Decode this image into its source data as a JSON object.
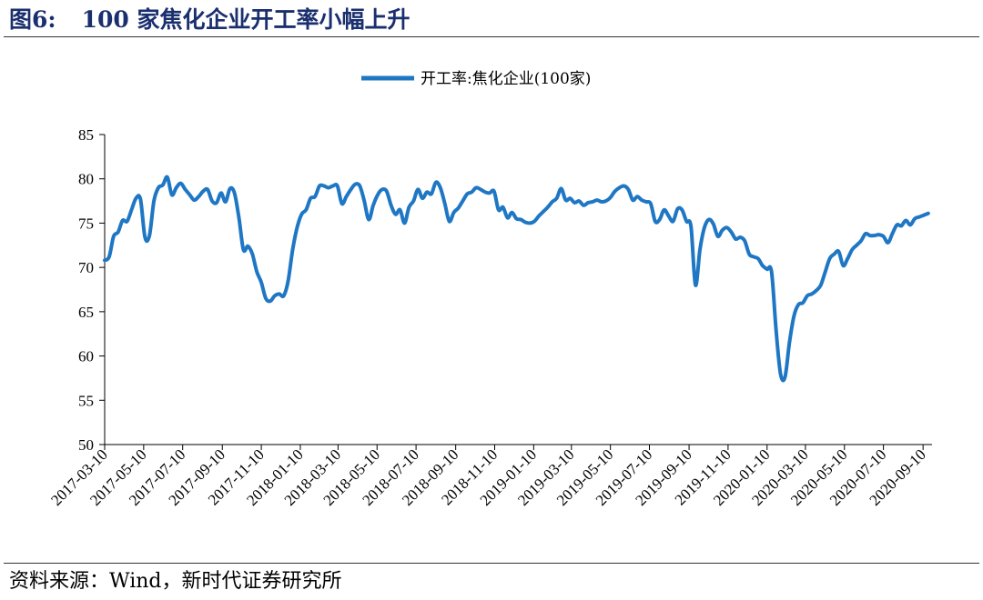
{
  "figure": {
    "number": "图6:",
    "title": "100 家焦化企业开工率小幅上升",
    "source": "资料来源：Wind，新时代证券研究所"
  },
  "chart_data": {
    "type": "line",
    "title": "",
    "xlabel": "",
    "ylabel": "",
    "ylim": [
      50,
      85
    ],
    "yticks": [
      85,
      80,
      75,
      70,
      65,
      60,
      55,
      50
    ],
    "xticks": [
      "2017-03-10",
      "2017-05-10",
      "2017-07-10",
      "2017-09-10",
      "2017-11-10",
      "2018-01-10",
      "2018-03-10",
      "2018-05-10",
      "2018-07-10",
      "2018-09-10",
      "2018-11-10",
      "2019-01-10",
      "2019-03-10",
      "2019-05-10",
      "2019-07-10",
      "2019-09-10",
      "2019-11-10",
      "2020-01-10",
      "2020-03-10",
      "2020-05-10",
      "2020-07-10",
      "2020-09-10"
    ],
    "legend": {
      "position": "top-center"
    },
    "grid": false,
    "color": "#1f77c4",
    "series": [
      {
        "name": "开工率:焦化企业(100家)",
        "points": [
          [
            "2017-03-10",
            70.8
          ],
          [
            "2017-03-17",
            71.2
          ],
          [
            "2017-03-24",
            73.5
          ],
          [
            "2017-03-31",
            74.0
          ],
          [
            "2017-04-07",
            75.3
          ],
          [
            "2017-04-14",
            75.2
          ],
          [
            "2017-04-21",
            76.5
          ],
          [
            "2017-04-28",
            77.8
          ],
          [
            "2017-05-05",
            77.7
          ],
          [
            "2017-05-12",
            73.4
          ],
          [
            "2017-05-19",
            73.6
          ],
          [
            "2017-05-26",
            77.5
          ],
          [
            "2017-06-02",
            79.0
          ],
          [
            "2017-06-09",
            79.3
          ],
          [
            "2017-06-16",
            80.2
          ],
          [
            "2017-06-23",
            78.2
          ],
          [
            "2017-06-30",
            79.0
          ],
          [
            "2017-07-07",
            79.5
          ],
          [
            "2017-07-14",
            78.8
          ],
          [
            "2017-07-21",
            78.2
          ],
          [
            "2017-07-28",
            77.6
          ],
          [
            "2017-08-04",
            78.0
          ],
          [
            "2017-08-11",
            78.6
          ],
          [
            "2017-08-18",
            78.8
          ],
          [
            "2017-08-25",
            77.5
          ],
          [
            "2017-09-01",
            77.3
          ],
          [
            "2017-09-08",
            78.4
          ],
          [
            "2017-09-15",
            77.4
          ],
          [
            "2017-09-22",
            78.9
          ],
          [
            "2017-09-29",
            78.4
          ],
          [
            "2017-10-06",
            75.6
          ],
          [
            "2017-10-13",
            72.0
          ],
          [
            "2017-10-20",
            72.4
          ],
          [
            "2017-10-27",
            71.5
          ],
          [
            "2017-11-03",
            69.5
          ],
          [
            "2017-11-10",
            68.3
          ],
          [
            "2017-11-17",
            66.5
          ],
          [
            "2017-11-24",
            66.2
          ],
          [
            "2017-12-01",
            66.8
          ],
          [
            "2017-12-08",
            67.0
          ],
          [
            "2017-12-15",
            66.8
          ],
          [
            "2017-12-22",
            68.5
          ],
          [
            "2017-12-29",
            72.0
          ],
          [
            "2018-01-05",
            74.5
          ],
          [
            "2018-01-12",
            76.0
          ],
          [
            "2018-01-19",
            76.5
          ],
          [
            "2018-01-26",
            77.8
          ],
          [
            "2018-02-02",
            78.0
          ],
          [
            "2018-02-09",
            79.2
          ],
          [
            "2018-02-16",
            79.2
          ],
          [
            "2018-02-23",
            79.0
          ],
          [
            "2018-03-02",
            79.2
          ],
          [
            "2018-03-09",
            79.2
          ],
          [
            "2018-03-16",
            77.2
          ],
          [
            "2018-03-23",
            78.0
          ],
          [
            "2018-03-30",
            78.8
          ],
          [
            "2018-04-06",
            79.4
          ],
          [
            "2018-04-13",
            79.2
          ],
          [
            "2018-04-20",
            77.5
          ],
          [
            "2018-04-27",
            75.4
          ],
          [
            "2018-05-04",
            77.0
          ],
          [
            "2018-05-11",
            78.2
          ],
          [
            "2018-05-18",
            78.8
          ],
          [
            "2018-05-25",
            78.6
          ],
          [
            "2018-06-01",
            77.0
          ],
          [
            "2018-06-08",
            76.0
          ],
          [
            "2018-06-15",
            76.5
          ],
          [
            "2018-06-22",
            75.0
          ],
          [
            "2018-06-29",
            76.8
          ],
          [
            "2018-07-06",
            77.5
          ],
          [
            "2018-07-13",
            78.8
          ],
          [
            "2018-07-20",
            77.8
          ],
          [
            "2018-07-27",
            78.5
          ],
          [
            "2018-08-03",
            78.3
          ],
          [
            "2018-08-10",
            79.6
          ],
          [
            "2018-08-17",
            79.0
          ],
          [
            "2018-08-24",
            77.2
          ],
          [
            "2018-08-31",
            75.2
          ],
          [
            "2018-09-07",
            76.2
          ],
          [
            "2018-09-14",
            76.7
          ],
          [
            "2018-09-21",
            77.5
          ],
          [
            "2018-09-28",
            78.3
          ],
          [
            "2018-10-05",
            78.5
          ],
          [
            "2018-10-12",
            79.0
          ],
          [
            "2018-10-19",
            78.8
          ],
          [
            "2018-10-26",
            78.5
          ],
          [
            "2018-11-02",
            78.4
          ],
          [
            "2018-11-09",
            78.6
          ],
          [
            "2018-11-16",
            76.5
          ],
          [
            "2018-11-23",
            76.8
          ],
          [
            "2018-11-30",
            75.6
          ],
          [
            "2018-12-07",
            76.2
          ],
          [
            "2018-12-14",
            75.5
          ],
          [
            "2018-12-21",
            75.4
          ],
          [
            "2018-12-28",
            75.1
          ],
          [
            "2019-01-04",
            75.0
          ],
          [
            "2019-01-11",
            75.2
          ],
          [
            "2019-01-18",
            75.8
          ],
          [
            "2019-01-25",
            76.3
          ],
          [
            "2019-02-01",
            76.8
          ],
          [
            "2019-02-08",
            77.4
          ],
          [
            "2019-02-15",
            77.8
          ],
          [
            "2019-02-22",
            78.9
          ],
          [
            "2019-03-01",
            77.6
          ],
          [
            "2019-03-08",
            77.8
          ],
          [
            "2019-03-15",
            77.3
          ],
          [
            "2019-03-22",
            77.5
          ],
          [
            "2019-03-29",
            77.0
          ],
          [
            "2019-04-05",
            77.3
          ],
          [
            "2019-04-12",
            77.4
          ],
          [
            "2019-04-19",
            77.6
          ],
          [
            "2019-04-26",
            77.4
          ],
          [
            "2019-05-03",
            77.5
          ],
          [
            "2019-05-10",
            77.9
          ],
          [
            "2019-05-17",
            78.6
          ],
          [
            "2019-05-24",
            79.0
          ],
          [
            "2019-05-31",
            79.2
          ],
          [
            "2019-06-07",
            78.8
          ],
          [
            "2019-06-14",
            77.6
          ],
          [
            "2019-06-21",
            78.0
          ],
          [
            "2019-06-28",
            77.6
          ],
          [
            "2019-07-05",
            77.4
          ],
          [
            "2019-07-12",
            77.2
          ],
          [
            "2019-07-19",
            75.2
          ],
          [
            "2019-07-26",
            75.4
          ],
          [
            "2019-08-02",
            76.5
          ],
          [
            "2019-08-09",
            75.8
          ],
          [
            "2019-08-16",
            75.2
          ],
          [
            "2019-08-23",
            76.6
          ],
          [
            "2019-08-30",
            76.5
          ],
          [
            "2019-09-06",
            75.2
          ],
          [
            "2019-09-13",
            74.6
          ],
          [
            "2019-09-20",
            68.0
          ],
          [
            "2019-09-27",
            72.0
          ],
          [
            "2019-10-04",
            74.5
          ],
          [
            "2019-10-11",
            75.4
          ],
          [
            "2019-10-18",
            74.9
          ],
          [
            "2019-10-25",
            73.5
          ],
          [
            "2019-11-01",
            74.2
          ],
          [
            "2019-11-08",
            74.5
          ],
          [
            "2019-11-15",
            74.0
          ],
          [
            "2019-11-22",
            73.2
          ],
          [
            "2019-11-29",
            73.4
          ],
          [
            "2019-12-06",
            73.0
          ],
          [
            "2019-12-13",
            71.5
          ],
          [
            "2019-12-20",
            71.2
          ],
          [
            "2019-12-27",
            71.0
          ],
          [
            "2020-01-03",
            70.2
          ],
          [
            "2020-01-10",
            69.8
          ],
          [
            "2020-01-17",
            69.5
          ],
          [
            "2020-01-24",
            63.0
          ],
          [
            "2020-01-31",
            58.0
          ],
          [
            "2020-02-07",
            57.6
          ],
          [
            "2020-02-14",
            61.5
          ],
          [
            "2020-02-21",
            64.5
          ],
          [
            "2020-02-28",
            65.8
          ],
          [
            "2020-03-06",
            66.0
          ],
          [
            "2020-03-13",
            66.8
          ],
          [
            "2020-03-20",
            67.0
          ],
          [
            "2020-03-27",
            67.4
          ],
          [
            "2020-04-03",
            68.0
          ],
          [
            "2020-04-10",
            69.5
          ],
          [
            "2020-04-17",
            71.0
          ],
          [
            "2020-04-24",
            71.5
          ],
          [
            "2020-05-01",
            71.8
          ],
          [
            "2020-05-08",
            70.2
          ],
          [
            "2020-05-15",
            71.0
          ],
          [
            "2020-05-22",
            72.0
          ],
          [
            "2020-05-29",
            72.5
          ],
          [
            "2020-06-05",
            73.0
          ],
          [
            "2020-06-12",
            73.8
          ],
          [
            "2020-06-19",
            73.6
          ],
          [
            "2020-06-26",
            73.6
          ],
          [
            "2020-07-03",
            73.7
          ],
          [
            "2020-07-10",
            73.5
          ],
          [
            "2020-07-17",
            72.8
          ],
          [
            "2020-07-24",
            73.8
          ],
          [
            "2020-07-31",
            74.8
          ],
          [
            "2020-08-07",
            74.7
          ],
          [
            "2020-08-14",
            75.3
          ],
          [
            "2020-08-21",
            74.8
          ],
          [
            "2020-08-28",
            75.5
          ],
          [
            "2020-09-04",
            75.7
          ],
          [
            "2020-09-11",
            75.9
          ],
          [
            "2020-09-18",
            76.1
          ]
        ]
      }
    ]
  }
}
